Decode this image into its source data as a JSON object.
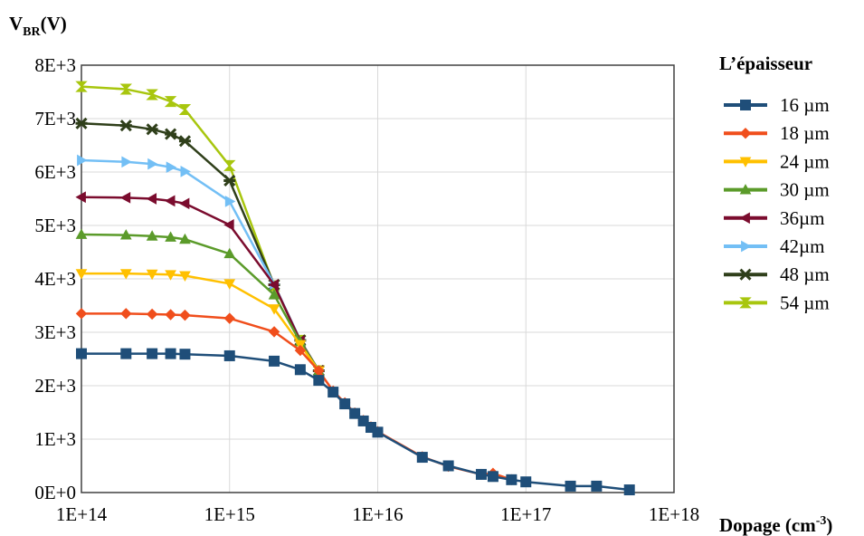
{
  "chart_data": {
    "type": "line",
    "ylabel_main": "V",
    "ylabel_sub": "BR",
    "ylabel_unit": "(V)",
    "xlabel_main": "Dopage (cm",
    "xlabel_sup": "-3",
    "xlabel_end": ")",
    "x_scale": "log",
    "xlim": [
      100000000000000.0,
      1e+18
    ],
    "ylim": [
      0,
      8000
    ],
    "x_tick_values": [
      100000000000000.0,
      1000000000000000.0,
      1e+16,
      1e+17,
      1e+18
    ],
    "x_tick_labels": [
      "1E+14",
      "1E+15",
      "1E+16",
      "1E+17",
      "1E+18"
    ],
    "y_tick_values": [
      0,
      1000,
      2000,
      3000,
      4000,
      5000,
      6000,
      7000,
      8000
    ],
    "y_tick_labels": [
      "0E+0",
      "1E+3",
      "2E+3",
      "3E+3",
      "4E+3",
      "5E+3",
      "6E+3",
      "7E+3",
      "8E+3"
    ],
    "grid": true,
    "legend_title": "L’épaisseur",
    "legend_position": "right",
    "series": [
      {
        "name": "16 µm",
        "color": "#1F4E79",
        "marker": "square",
        "x": [
          100000000000000.0,
          200000000000000.0,
          300000000000000.0,
          400000000000000.0,
          500000000000000.0,
          1000000000000000.0,
          2000000000000000.0,
          3000000000000000.0,
          4000000000000000.0,
          5000000000000000.0,
          6000000000000000.0,
          7000000000000000.0,
          8000000000000000.0,
          9000000000000000.0,
          1e+16,
          2e+16,
          3e+16,
          5e+16,
          6e+16,
          8e+16,
          1e+17,
          2e+17,
          3e+17,
          5e+17
        ],
        "y": [
          2600,
          2600,
          2600,
          2600,
          2590,
          2560,
          2460,
          2300,
          2100,
          1880,
          1660,
          1480,
          1340,
          1220,
          1130,
          660,
          500,
          340,
          300,
          240,
          200,
          120,
          120,
          50
        ]
      },
      {
        "name": "18 µm",
        "color": "#F04E1C",
        "marker": "diamond",
        "x": [
          100000000000000.0,
          200000000000000.0,
          300000000000000.0,
          400000000000000.0,
          500000000000000.0,
          1000000000000000.0,
          2000000000000000.0,
          3000000000000000.0,
          4000000000000000.0,
          5000000000000000.0,
          6000000000000000.0,
          7000000000000000.0,
          8000000000000000.0,
          9000000000000000.0,
          1e+16,
          2e+16,
          3e+16,
          5e+16,
          6e+16,
          8e+16
        ],
        "y": [
          3350,
          3350,
          3340,
          3330,
          3320,
          3260,
          3010,
          2660,
          2280,
          1900,
          1680,
          1490,
          1350,
          1230,
          1140,
          670,
          490,
          340,
          360,
          240
        ]
      },
      {
        "name": "24 µm",
        "color": "#FFC000",
        "marker": "triangle-down",
        "x": [
          100000000000000.0,
          200000000000000.0,
          300000000000000.0,
          400000000000000.0,
          500000000000000.0,
          1000000000000000.0,
          2000000000000000.0,
          3000000000000000.0,
          4000000000000000.0
        ],
        "y": [
          4100,
          4100,
          4090,
          4080,
          4060,
          3910,
          3440,
          2770,
          2280
        ]
      },
      {
        "name": "30 µm",
        "color": "#5B9B2A",
        "marker": "triangle-up",
        "x": [
          100000000000000.0,
          200000000000000.0,
          300000000000000.0,
          400000000000000.0,
          500000000000000.0,
          1000000000000000.0,
          2000000000000000.0,
          3000000000000000.0,
          4000000000000000.0
        ],
        "y": [
          4830,
          4820,
          4800,
          4780,
          4740,
          4470,
          3700,
          2820,
          2280
        ]
      },
      {
        "name": "36µm",
        "color": "#7B0C2E",
        "marker": "triangle-left",
        "x": [
          100000000000000.0,
          200000000000000.0,
          300000000000000.0,
          400000000000000.0,
          500000000000000.0,
          1000000000000000.0,
          2000000000000000.0,
          3000000000000000.0,
          4000000000000000.0
        ],
        "y": [
          5530,
          5520,
          5500,
          5460,
          5410,
          5010,
          3890,
          2840,
          2280
        ]
      },
      {
        "name": "42µm",
        "color": "#73BFF5",
        "marker": "triangle-right",
        "x": [
          100000000000000.0,
          200000000000000.0,
          300000000000000.0,
          400000000000000.0,
          500000000000000.0,
          1000000000000000.0,
          2000000000000000.0,
          3000000000000000.0,
          4000000000000000.0
        ],
        "y": [
          6220,
          6190,
          6150,
          6090,
          6010,
          5450,
          3900,
          2850,
          2280
        ]
      },
      {
        "name": "48 µm",
        "color": "#2F3F1A",
        "marker": "star",
        "x": [
          100000000000000.0,
          200000000000000.0,
          300000000000000.0,
          400000000000000.0,
          500000000000000.0,
          1000000000000000.0,
          2000000000000000.0,
          3000000000000000.0,
          4000000000000000.0
        ],
        "y": [
          6910,
          6870,
          6800,
          6710,
          6580,
          5840,
          3890,
          2850,
          2280
        ]
      },
      {
        "name": "54 µm",
        "color": "#A8C60E",
        "marker": "hourglass",
        "x": [
          100000000000000.0,
          200000000000000.0,
          300000000000000.0,
          400000000000000.0,
          500000000000000.0,
          1000000000000000.0,
          2000000000000000.0,
          3000000000000000.0,
          4000000000000000.0
        ],
        "y": [
          7600,
          7550,
          7450,
          7320,
          7170,
          6120,
          3870,
          2850,
          2280
        ]
      }
    ]
  }
}
